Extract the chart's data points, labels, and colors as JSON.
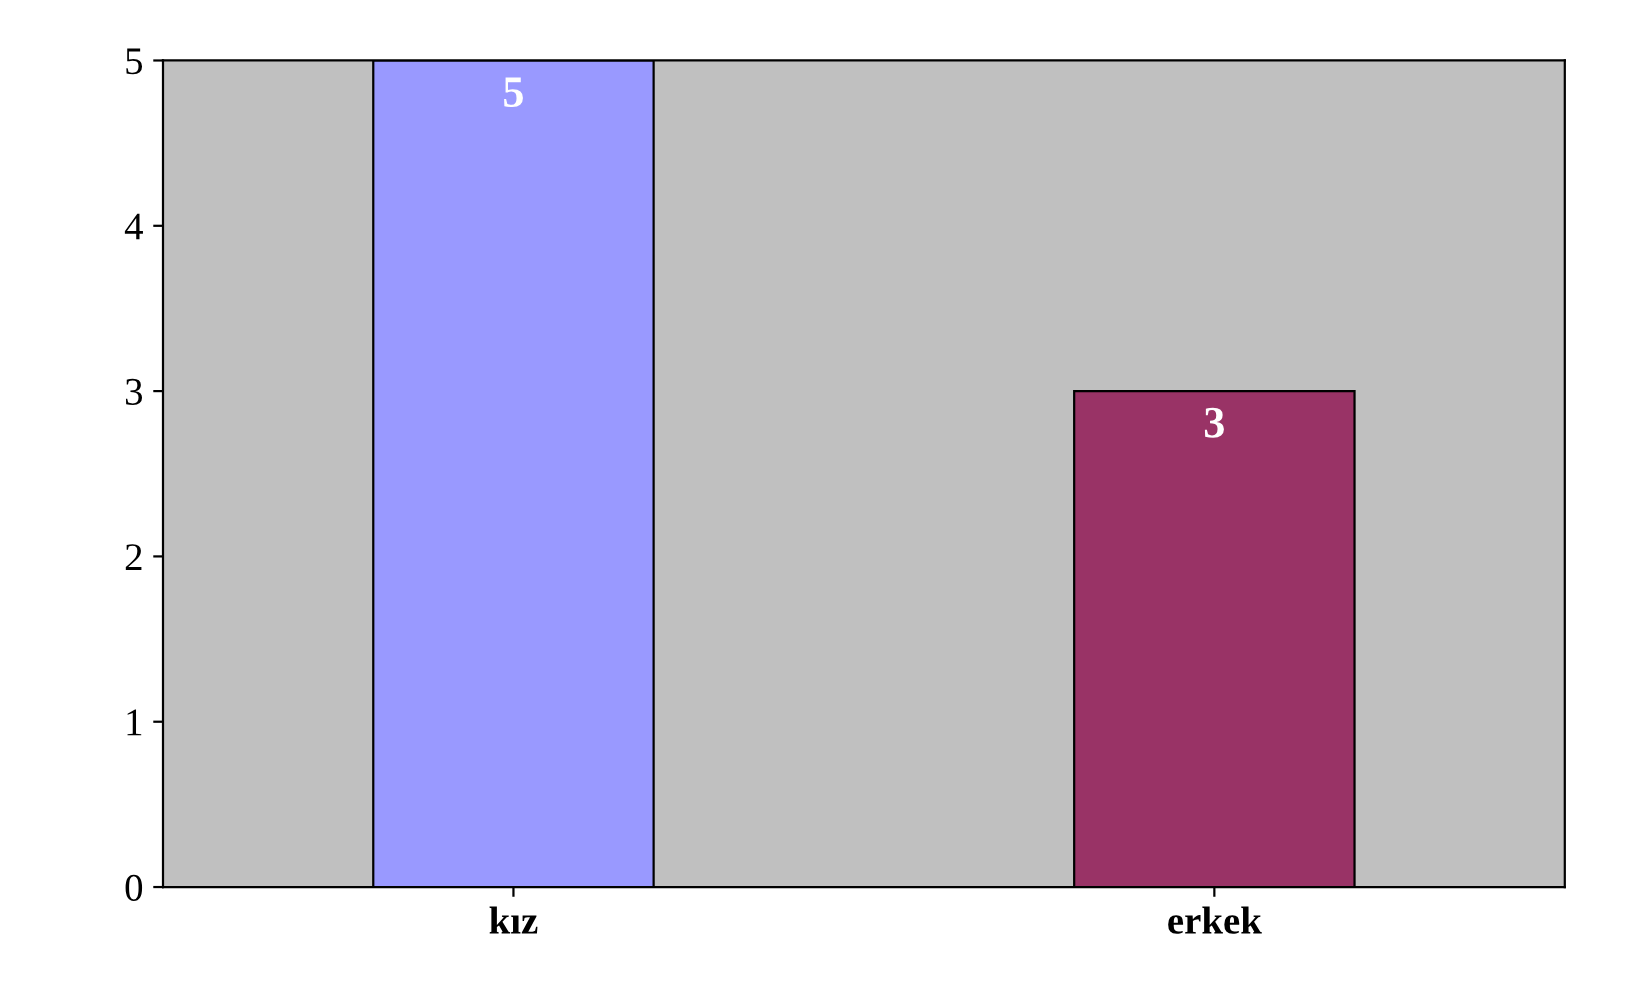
{
  "chart_data": {
    "type": "bar",
    "categories": [
      "kız",
      "erkek"
    ],
    "values": [
      5,
      3
    ],
    "colors": [
      "#9999ff",
      "#993366"
    ],
    "ylim": [
      0,
      5
    ],
    "yticks": [
      0,
      1,
      2,
      3,
      4,
      5
    ],
    "data_labels": true,
    "grid": false,
    "legend": false
  }
}
